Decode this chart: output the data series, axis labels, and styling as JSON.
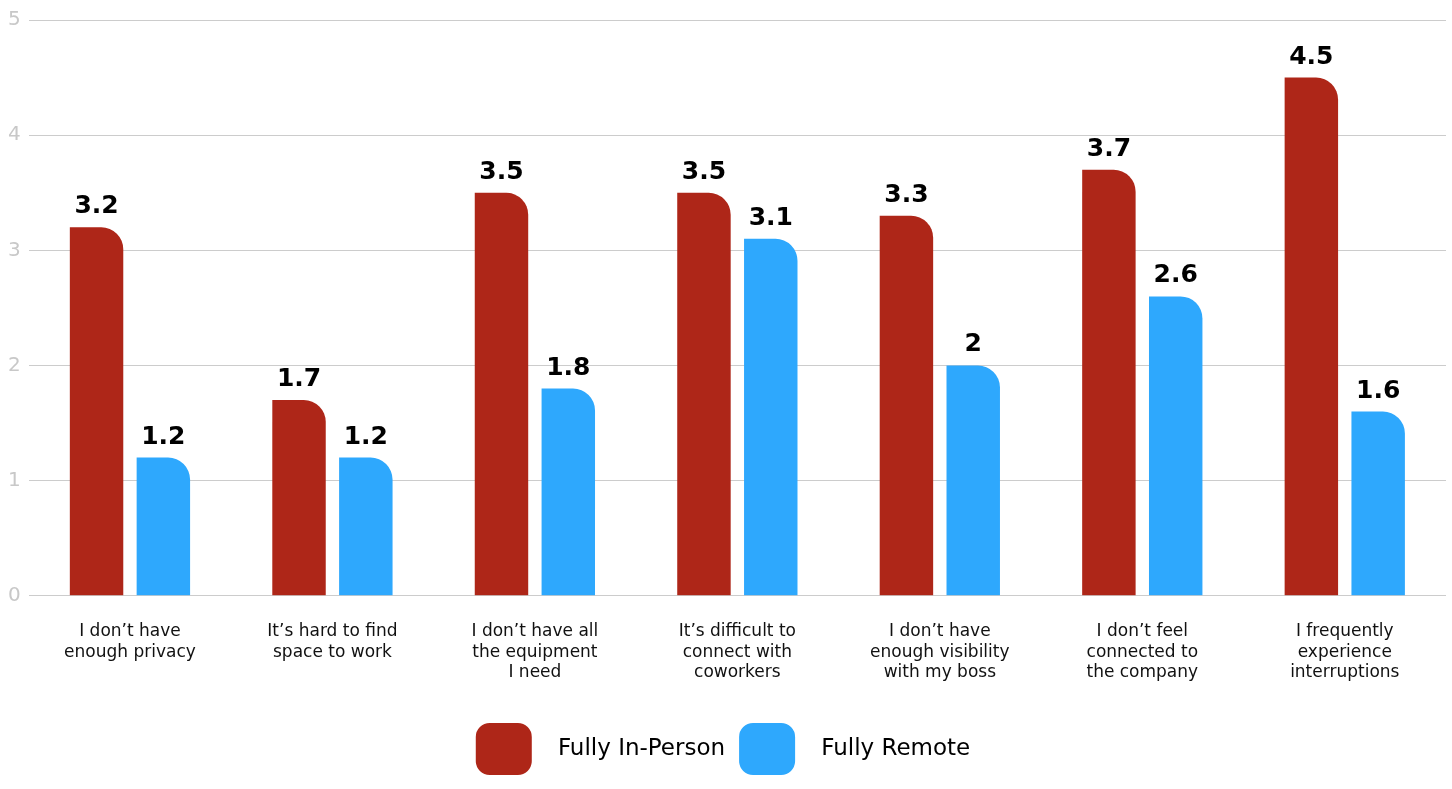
{
  "chart_data": {
    "type": "bar",
    "categories": [
      "I don’t have\nenough privacy",
      "It’s hard to find\nspace to work",
      "I don’t have all\nthe equipment\nI need",
      "It’s difficult to\nconnect with\ncoworkers",
      "I don’t have\nenough visibility\nwith my boss",
      "I don’t feel\nconnected to\nthe company",
      "I frequently\nexperience\ninterruptions"
    ],
    "series": [
      {
        "name": "Fully In-Person",
        "color": "#ae2618",
        "values": [
          3.2,
          1.7,
          3.5,
          3.5,
          3.3,
          3.7,
          4.5
        ]
      },
      {
        "name": "Fully Remote",
        "color": "#2ea8fd",
        "values": [
          1.2,
          1.2,
          1.8,
          3.1,
          2,
          2.6,
          1.6
        ]
      }
    ],
    "ylim": [
      0,
      5
    ],
    "yticks": [
      0,
      1,
      2,
      3,
      4,
      5
    ],
    "grid": "y",
    "legend": "bottom",
    "data_labels": true
  }
}
